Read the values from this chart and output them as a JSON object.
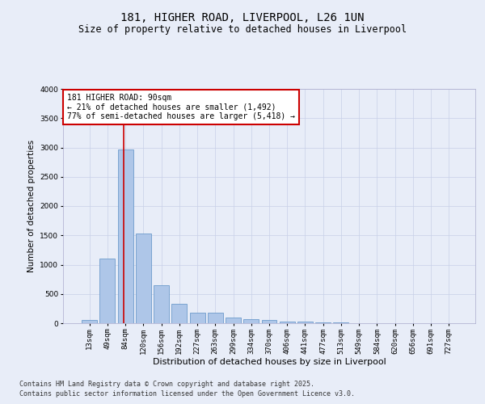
{
  "title_line1": "181, HIGHER ROAD, LIVERPOOL, L26 1UN",
  "title_line2": "Size of property relative to detached houses in Liverpool",
  "xlabel": "Distribution of detached houses by size in Liverpool",
  "ylabel": "Number of detached properties",
  "categories": [
    "13sqm",
    "49sqm",
    "84sqm",
    "120sqm",
    "156sqm",
    "192sqm",
    "227sqm",
    "263sqm",
    "299sqm",
    "334sqm",
    "370sqm",
    "406sqm",
    "441sqm",
    "477sqm",
    "513sqm",
    "549sqm",
    "584sqm",
    "620sqm",
    "656sqm",
    "691sqm",
    "727sqm"
  ],
  "values": [
    50,
    1100,
    2960,
    1530,
    650,
    330,
    185,
    185,
    95,
    75,
    55,
    30,
    25,
    15,
    10,
    5,
    5,
    2,
    2,
    1,
    1
  ],
  "bar_color": "#aec6e8",
  "bar_edge_color": "#5a8fc4",
  "vline_x_index": 2,
  "vline_color": "#cc0000",
  "annotation_text": "181 HIGHER ROAD: 90sqm\n← 21% of detached houses are smaller (1,492)\n77% of semi-detached houses are larger (5,418) →",
  "annotation_box_color": "#ffffff",
  "annotation_box_edge": "#cc0000",
  "ylim": [
    0,
    4000
  ],
  "yticks": [
    0,
    500,
    1000,
    1500,
    2000,
    2500,
    3000,
    3500,
    4000
  ],
  "grid_color": "#c8d0e8",
  "bg_color": "#e8edf8",
  "plot_bg_color": "#e8edf8",
  "footer_line1": "Contains HM Land Registry data © Crown copyright and database right 2025.",
  "footer_line2": "Contains public sector information licensed under the Open Government Licence v3.0.",
  "title_fontsize": 10,
  "subtitle_fontsize": 8.5,
  "axis_label_fontsize": 7.5,
  "tick_fontsize": 6.5,
  "annotation_fontsize": 7,
  "footer_fontsize": 6
}
